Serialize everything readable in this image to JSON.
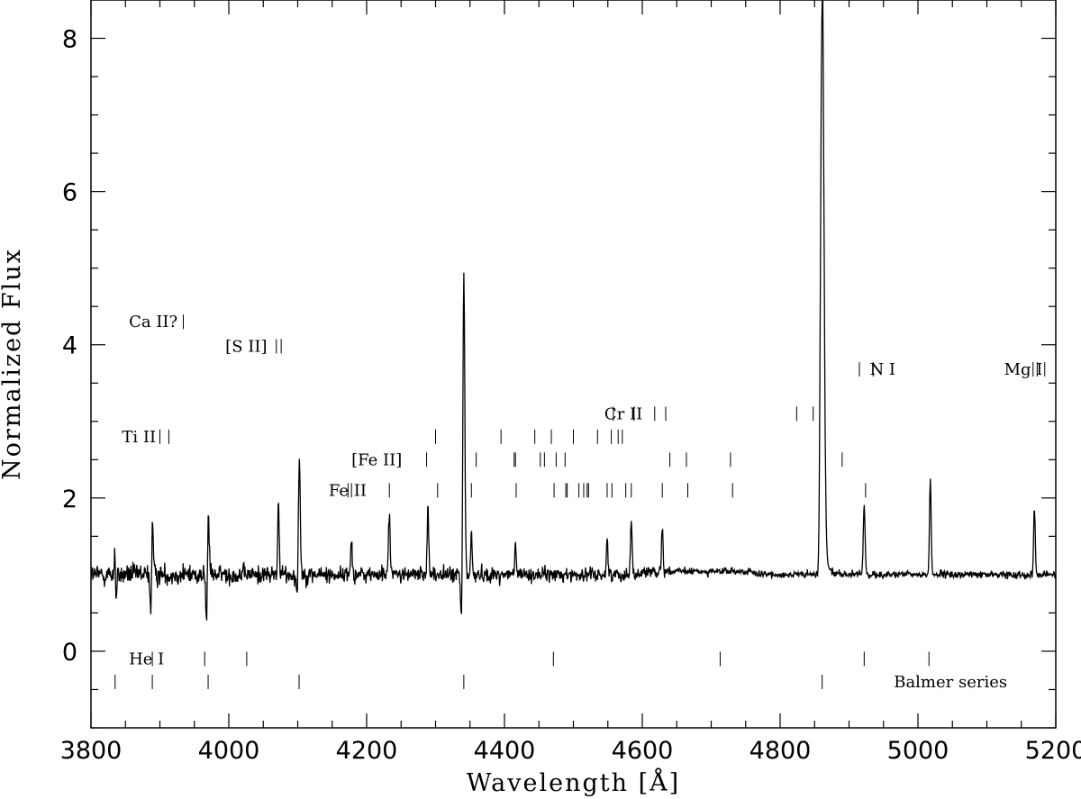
{
  "chart_data": {
    "type": "line",
    "xlabel": "Wavelength [Å]",
    "ylabel": "Normalized Flux",
    "xlim": [
      3800,
      5200
    ],
    "ylim": [
      -1,
      8.5
    ],
    "x_ticks": [
      3800,
      4000,
      4200,
      4400,
      4600,
      4800,
      5000,
      5200
    ],
    "y_ticks": [
      0,
      2,
      4,
      6,
      8
    ],
    "grid": false,
    "legend": "none",
    "line_color": "#000000",
    "continuum": 1.0,
    "noise_sigma_blue": 0.12,
    "noise_sigma_red": 0.03,
    "features": [
      {
        "x": 3835,
        "peak": 1.6,
        "width": 1.0
      },
      {
        "x": 3836,
        "dip": 0.35,
        "width": 1.0
      },
      {
        "x": 3889,
        "peak": 1.78,
        "width": 1.2
      },
      {
        "x": 3887,
        "dip": 0.28,
        "width": 1.0
      },
      {
        "x": 3970,
        "peak": 1.92,
        "width": 1.4
      },
      {
        "x": 3968,
        "dip": 0.12,
        "width": 1.2
      },
      {
        "x": 4072,
        "peak": 1.98,
        "width": 1.0
      },
      {
        "x": 4102,
        "peak": 2.72,
        "width": 1.5
      },
      {
        "x": 4100,
        "dip": 0.3,
        "width": 1.3
      },
      {
        "x": 4178,
        "peak": 1.45,
        "width": 1.2
      },
      {
        "x": 4233,
        "peak": 1.85,
        "width": 1.2
      },
      {
        "x": 4289,
        "peak": 1.95,
        "width": 1.1
      },
      {
        "x": 4341,
        "peak": 5.02,
        "width": 1.4
      },
      {
        "x": 4338,
        "dip": 0.25,
        "width": 1.4
      },
      {
        "x": 4352,
        "peak": 1.55,
        "width": 1.0
      },
      {
        "x": 4416,
        "peak": 1.42,
        "width": 1.0
      },
      {
        "x": 4549,
        "peak": 1.5,
        "width": 1.0
      },
      {
        "x": 4584,
        "peak": 1.73,
        "width": 1.2
      },
      {
        "x": 4629,
        "peak": 1.62,
        "width": 1.1
      },
      {
        "x": 4861,
        "peak": 8.5,
        "width": 2.5
      },
      {
        "x": 4857,
        "dip": 0.33,
        "width": 1.8
      },
      {
        "x": 4922,
        "peak": 1.92,
        "width": 1.3
      },
      {
        "x": 5018,
        "peak": 2.25,
        "width": 1.2
      },
      {
        "x": 5169,
        "peak": 2.15,
        "width": 1.1
      },
      {
        "x": 5169,
        "dip": 0.72,
        "width": 0.8
      }
    ],
    "line_ids": [
      {
        "label": "Ca II?",
        "text_x": 3855,
        "y": 4.3,
        "ticks": [
          3934
        ]
      },
      {
        "label": "[S II]",
        "text_x": 3995,
        "y": 3.98,
        "ticks": [
          4069,
          4076
        ]
      },
      {
        "label": "Ti II",
        "text_x": 3845,
        "y": 2.8,
        "ticks": [
          3900,
          3913
        ]
      },
      {
        "label": "[Fe II]",
        "text_x": 4178,
        "y": 2.5,
        "ticks": [
          4287,
          4359,
          4414,
          4416,
          4452,
          4458,
          4475,
          4488,
          4640,
          4664,
          4728,
          4890
        ]
      },
      {
        "label": "Fe II",
        "text_x": 4145,
        "y": 2.1,
        "ticks": [
          4173,
          4178,
          4233,
          4303,
          4352,
          4417,
          4472,
          4489,
          4491,
          4508,
          4515,
          4520,
          4522,
          4549,
          4556,
          4576,
          4584,
          4629,
          4666,
          4731,
          4924
        ]
      },
      {
        "label": "",
        "text_x": 0,
        "y": 2.8,
        "ticks": [
          4300,
          4395,
          4444,
          4468,
          4500,
          4535,
          4555,
          4565,
          4571
        ]
      },
      {
        "label": "Cr II",
        "text_x": 4545,
        "y": 3.1,
        "ticks": [
          4558,
          4588,
          4618,
          4634,
          4824,
          4848
        ]
      },
      {
        "label": "N I",
        "text_x": 4930,
        "y": 3.68,
        "ticks": [
          4915,
          4935
        ]
      },
      {
        "label": "Mg I",
        "text_x": 5125,
        "y": 3.68,
        "ticks": [
          5167,
          5173,
          5184
        ]
      },
      {
        "label": "He I",
        "text_x": 3855,
        "y": -0.1,
        "ticks": [
          3889,
          3965,
          4026,
          4471,
          4713,
          4922,
          5016
        ]
      },
      {
        "label": "Balmer series",
        "text_x": 4965,
        "y": -0.4,
        "ticks": [
          3835,
          3889,
          3970,
          4102,
          4341,
          4861
        ]
      }
    ]
  }
}
